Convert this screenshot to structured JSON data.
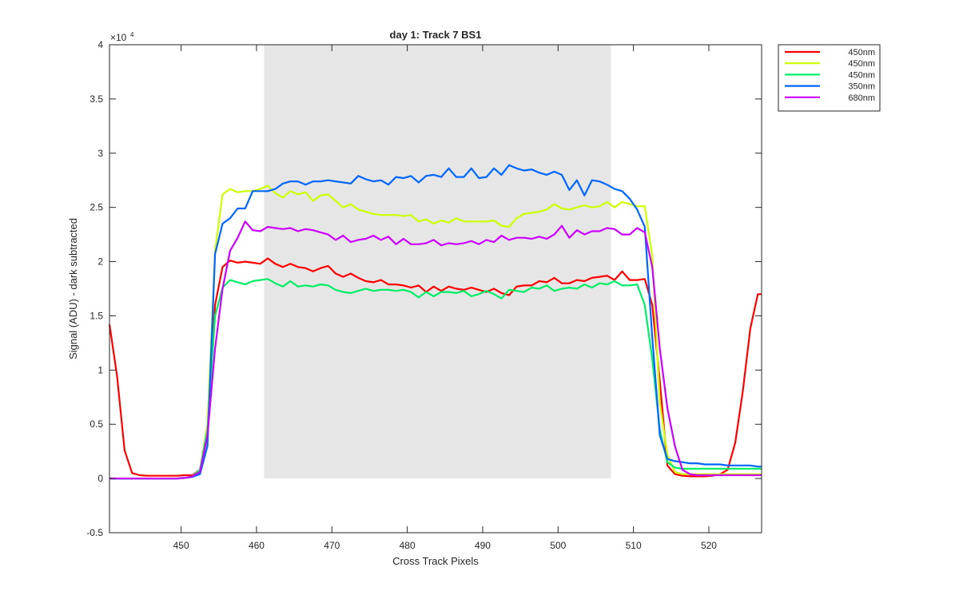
{
  "chart_data": {
    "type": "line",
    "title": "day 1: Track 7  BS1",
    "xlabel": "Cross Track Pixels",
    "ylabel": "Signal (ADU) - dark subtracted",
    "exponent_label": "×10",
    "exponent_power": "4",
    "xlim": [
      440.5,
      527
    ],
    "ylim": [
      -0.5,
      4
    ],
    "xticks": [
      450,
      460,
      470,
      480,
      490,
      500,
      510,
      520
    ],
    "yticks": [
      -0.5,
      0,
      0.5,
      1,
      1.5,
      2,
      2.5,
      3,
      3.5,
      4
    ],
    "shaded_region": {
      "x": [
        461,
        507
      ],
      "y": [
        0,
        4
      ],
      "color": "#e6e6e6"
    },
    "grid": false,
    "legend_position": "outside-top-right",
    "series": [
      {
        "name": "450nm",
        "color": "#ff0000",
        "x": [
          440.5,
          441.5,
          442.5,
          443.5,
          444.5,
          445.5,
          446.5,
          447.5,
          448.5,
          449.5,
          450.5,
          451.5,
          452.5,
          453.5,
          454.5,
          455.5,
          456.5,
          457.5,
          458.5,
          459.5,
          460.5,
          461.5,
          462.5,
          463.5,
          464.5,
          465.5,
          466.5,
          467.5,
          468.5,
          469.5,
          470.5,
          471.5,
          472.5,
          473.5,
          474.5,
          475.5,
          476.5,
          477.5,
          478.5,
          479.5,
          480.5,
          481.5,
          482.5,
          483.5,
          484.5,
          485.5,
          486.5,
          487.5,
          488.5,
          489.5,
          490.5,
          491.5,
          492.5,
          493.5,
          494.5,
          495.5,
          496.5,
          497.5,
          498.5,
          499.5,
          500.5,
          501.5,
          502.5,
          503.5,
          504.5,
          505.5,
          506.5,
          507.5,
          508.5,
          509.5,
          510.5,
          511.5,
          512.5,
          513.5,
          514.5,
          515.5,
          516.5,
          517.5,
          518.5,
          519.5,
          520.5,
          521.5,
          522.5,
          523.5,
          524.5,
          525.5,
          526.5,
          527
        ],
        "y": [
          1.42,
          0.95,
          0.26,
          0.05,
          0.03,
          0.025,
          0.025,
          0.025,
          0.025,
          0.025,
          0.03,
          0.03,
          0.08,
          0.4,
          1.6,
          1.95,
          2.01,
          1.99,
          2.0,
          1.99,
          1.98,
          2.03,
          1.98,
          1.95,
          1.98,
          1.95,
          1.94,
          1.91,
          1.94,
          1.96,
          1.89,
          1.86,
          1.89,
          1.85,
          1.82,
          1.81,
          1.83,
          1.79,
          1.79,
          1.78,
          1.76,
          1.78,
          1.72,
          1.77,
          1.73,
          1.77,
          1.75,
          1.74,
          1.76,
          1.74,
          1.72,
          1.75,
          1.71,
          1.69,
          1.77,
          1.78,
          1.78,
          1.82,
          1.81,
          1.85,
          1.8,
          1.8,
          1.83,
          1.82,
          1.85,
          1.86,
          1.87,
          1.83,
          1.91,
          1.83,
          1.83,
          1.84,
          1.6,
          0.9,
          0.12,
          0.04,
          0.025,
          0.02,
          0.02,
          0.02,
          0.025,
          0.04,
          0.08,
          0.33,
          0.8,
          1.38,
          1.7,
          1.7
        ]
      },
      {
        "name": "450nm",
        "color": "#ccff00",
        "x": [
          440.5,
          441.5,
          442.5,
          443.5,
          444.5,
          445.5,
          446.5,
          447.5,
          448.5,
          449.5,
          450.5,
          451.5,
          452.5,
          453.5,
          454.5,
          455.5,
          456.5,
          457.5,
          458.5,
          459.5,
          460.5,
          461.5,
          462.5,
          463.5,
          464.5,
          465.5,
          466.5,
          467.5,
          468.5,
          469.5,
          470.5,
          471.5,
          472.5,
          473.5,
          474.5,
          475.5,
          476.5,
          477.5,
          478.5,
          479.5,
          480.5,
          481.5,
          482.5,
          483.5,
          484.5,
          485.5,
          486.5,
          487.5,
          488.5,
          489.5,
          490.5,
          491.5,
          492.5,
          493.5,
          494.5,
          495.5,
          496.5,
          497.5,
          498.5,
          499.5,
          500.5,
          501.5,
          502.5,
          503.5,
          504.5,
          505.5,
          506.5,
          507.5,
          508.5,
          509.5,
          510.5,
          511.5,
          512.5,
          513.5,
          514.5,
          515.5,
          516.5,
          517.5,
          518.5,
          519.5,
          520.5,
          521.5,
          522.5,
          523.5,
          524.5,
          525.5,
          526.5,
          527
        ],
        "y": [
          0.0,
          0.0,
          0.0,
          0.0,
          0.0,
          0.0,
          0.0,
          0.0,
          0.0,
          0.0,
          0.005,
          0.02,
          0.08,
          0.5,
          2.1,
          2.62,
          2.67,
          2.64,
          2.65,
          2.65,
          2.67,
          2.7,
          2.63,
          2.59,
          2.65,
          2.62,
          2.64,
          2.56,
          2.61,
          2.62,
          2.56,
          2.5,
          2.53,
          2.48,
          2.46,
          2.44,
          2.43,
          2.43,
          2.43,
          2.42,
          2.43,
          2.37,
          2.39,
          2.35,
          2.38,
          2.36,
          2.4,
          2.37,
          2.37,
          2.37,
          2.37,
          2.38,
          2.33,
          2.32,
          2.4,
          2.44,
          2.45,
          2.46,
          2.48,
          2.53,
          2.49,
          2.48,
          2.5,
          2.52,
          2.5,
          2.51,
          2.55,
          2.5,
          2.55,
          2.53,
          2.51,
          2.51,
          2.05,
          0.7,
          0.22,
          0.06,
          0.04,
          0.04,
          0.04,
          0.04,
          0.04,
          0.04,
          0.04,
          0.04,
          0.04,
          0.04,
          0.04,
          0.04
        ]
      },
      {
        "name": "450nm",
        "color": "#00ee66",
        "x": [
          440.5,
          441.5,
          442.5,
          443.5,
          444.5,
          445.5,
          446.5,
          447.5,
          448.5,
          449.5,
          450.5,
          451.5,
          452.5,
          453.5,
          454.5,
          455.5,
          456.5,
          457.5,
          458.5,
          459.5,
          460.5,
          461.5,
          462.5,
          463.5,
          464.5,
          465.5,
          466.5,
          467.5,
          468.5,
          469.5,
          470.5,
          471.5,
          472.5,
          473.5,
          474.5,
          475.5,
          476.5,
          477.5,
          478.5,
          479.5,
          480.5,
          481.5,
          482.5,
          483.5,
          484.5,
          485.5,
          486.5,
          487.5,
          488.5,
          489.5,
          490.5,
          491.5,
          492.5,
          493.5,
          494.5,
          495.5,
          496.5,
          497.5,
          498.5,
          499.5,
          500.5,
          501.5,
          502.5,
          503.5,
          504.5,
          505.5,
          506.5,
          507.5,
          508.5,
          509.5,
          510.5,
          511.5,
          512.5,
          513.5,
          514.5,
          515.5,
          516.5,
          517.5,
          518.5,
          519.5,
          520.5,
          521.5,
          522.5,
          523.5,
          524.5,
          525.5,
          526.5,
          527
        ],
        "y": [
          0.0,
          0.0,
          0.0,
          0.0,
          0.0,
          0.0,
          0.0,
          0.0,
          0.0,
          0.0,
          0.005,
          0.02,
          0.08,
          0.45,
          1.5,
          1.76,
          1.83,
          1.81,
          1.79,
          1.82,
          1.83,
          1.84,
          1.8,
          1.77,
          1.82,
          1.77,
          1.78,
          1.77,
          1.79,
          1.78,
          1.74,
          1.72,
          1.71,
          1.73,
          1.75,
          1.73,
          1.74,
          1.74,
          1.73,
          1.74,
          1.72,
          1.67,
          1.72,
          1.68,
          1.72,
          1.72,
          1.71,
          1.73,
          1.68,
          1.7,
          1.73,
          1.7,
          1.66,
          1.74,
          1.73,
          1.72,
          1.76,
          1.75,
          1.78,
          1.73,
          1.75,
          1.76,
          1.75,
          1.79,
          1.76,
          1.8,
          1.79,
          1.82,
          1.78,
          1.78,
          1.79,
          1.6,
          1.1,
          0.45,
          0.15,
          0.1,
          0.09,
          0.09,
          0.09,
          0.09,
          0.09,
          0.09,
          0.09,
          0.09,
          0.09,
          0.09,
          0.09,
          0.09
        ]
      },
      {
        "name": "350nm",
        "color": "#0066ff",
        "x": [
          440.5,
          441.5,
          442.5,
          443.5,
          444.5,
          445.5,
          446.5,
          447.5,
          448.5,
          449.5,
          450.5,
          451.5,
          452.5,
          453.5,
          454.5,
          455.5,
          456.5,
          457.5,
          458.5,
          459.5,
          460.5,
          461.5,
          462.5,
          463.5,
          464.5,
          465.5,
          466.5,
          467.5,
          468.5,
          469.5,
          470.5,
          471.5,
          472.5,
          473.5,
          474.5,
          475.5,
          476.5,
          477.5,
          478.5,
          479.5,
          480.5,
          481.5,
          482.5,
          483.5,
          484.5,
          485.5,
          486.5,
          487.5,
          488.5,
          489.5,
          490.5,
          491.5,
          492.5,
          493.5,
          494.5,
          495.5,
          496.5,
          497.5,
          498.5,
          499.5,
          500.5,
          501.5,
          502.5,
          503.5,
          504.5,
          505.5,
          506.5,
          507.5,
          508.5,
          509.5,
          510.5,
          511.5,
          512.5,
          513.5,
          514.5,
          515.5,
          516.5,
          517.5,
          518.5,
          519.5,
          520.5,
          521.5,
          522.5,
          523.5,
          524.5,
          525.5,
          526.5,
          527
        ],
        "y": [
          0.0,
          0.0,
          0.0,
          0.0,
          0.0,
          0.0,
          0.0,
          0.0,
          0.0,
          0.0,
          0.005,
          0.015,
          0.04,
          0.3,
          2.07,
          2.35,
          2.4,
          2.49,
          2.49,
          2.65,
          2.65,
          2.65,
          2.67,
          2.72,
          2.74,
          2.74,
          2.71,
          2.74,
          2.74,
          2.75,
          2.74,
          2.73,
          2.72,
          2.79,
          2.76,
          2.74,
          2.75,
          2.71,
          2.78,
          2.77,
          2.79,
          2.73,
          2.79,
          2.8,
          2.78,
          2.86,
          2.78,
          2.78,
          2.86,
          2.77,
          2.78,
          2.86,
          2.8,
          2.89,
          2.86,
          2.84,
          2.85,
          2.82,
          2.8,
          2.83,
          2.8,
          2.66,
          2.75,
          2.61,
          2.75,
          2.74,
          2.71,
          2.67,
          2.65,
          2.58,
          2.48,
          2.32,
          1.3,
          0.4,
          0.18,
          0.16,
          0.15,
          0.14,
          0.14,
          0.13,
          0.13,
          0.13,
          0.12,
          0.12,
          0.12,
          0.12,
          0.11,
          0.11
        ]
      },
      {
        "name": "680nm",
        "color": "#cc00ff",
        "x": [
          440.5,
          441.5,
          442.5,
          443.5,
          444.5,
          445.5,
          446.5,
          447.5,
          448.5,
          449.5,
          450.5,
          451.5,
          452.5,
          453.5,
          454.5,
          455.5,
          456.5,
          457.5,
          458.5,
          459.5,
          460.5,
          461.5,
          462.5,
          463.5,
          464.5,
          465.5,
          466.5,
          467.5,
          468.5,
          469.5,
          470.5,
          471.5,
          472.5,
          473.5,
          474.5,
          475.5,
          476.5,
          477.5,
          478.5,
          479.5,
          480.5,
          481.5,
          482.5,
          483.5,
          484.5,
          485.5,
          486.5,
          487.5,
          488.5,
          489.5,
          490.5,
          491.5,
          492.5,
          493.5,
          494.5,
          495.5,
          496.5,
          497.5,
          498.5,
          499.5,
          500.5,
          501.5,
          502.5,
          503.5,
          504.5,
          505.5,
          506.5,
          507.5,
          508.5,
          509.5,
          510.5,
          511.5,
          512.5,
          513.5,
          514.5,
          515.5,
          516.5,
          517.5,
          518.5,
          519.5,
          520.5,
          521.5,
          522.5,
          523.5,
          524.5,
          525.5,
          526.5,
          527
        ],
        "y": [
          0.0,
          0.0,
          0.0,
          0.0,
          0.0,
          0.0,
          0.0,
          0.0,
          0.0,
          0.0,
          0.005,
          0.02,
          0.06,
          0.4,
          1.2,
          1.75,
          2.1,
          2.22,
          2.37,
          2.29,
          2.28,
          2.32,
          2.31,
          2.3,
          2.31,
          2.28,
          2.3,
          2.29,
          2.27,
          2.25,
          2.2,
          2.24,
          2.18,
          2.2,
          2.21,
          2.24,
          2.2,
          2.23,
          2.16,
          2.21,
          2.16,
          2.16,
          2.17,
          2.2,
          2.15,
          2.17,
          2.16,
          2.17,
          2.19,
          2.16,
          2.2,
          2.18,
          2.24,
          2.2,
          2.22,
          2.22,
          2.21,
          2.23,
          2.21,
          2.25,
          2.33,
          2.22,
          2.29,
          2.25,
          2.28,
          2.28,
          2.31,
          2.3,
          2.25,
          2.25,
          2.31,
          2.27,
          1.95,
          1.2,
          0.65,
          0.3,
          0.08,
          0.04,
          0.03,
          0.03,
          0.03,
          0.03,
          0.03,
          0.03,
          0.03,
          0.03,
          0.03,
          0.03
        ]
      }
    ]
  }
}
